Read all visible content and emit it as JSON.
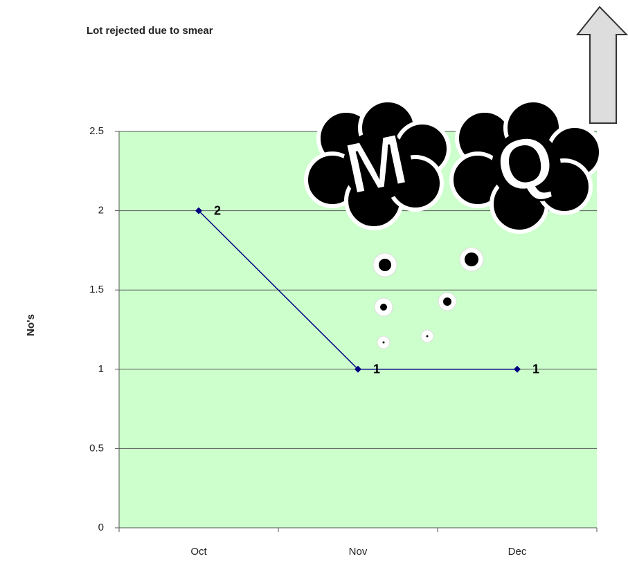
{
  "chart_data": {
    "type": "line",
    "title": "Lot rejected due to smear",
    "y_label": "No's",
    "categories": [
      "Oct",
      "Nov",
      "Dec"
    ],
    "values": [
      2,
      1,
      1
    ],
    "color": "#000080",
    "ylim": [
      0,
      2.5
    ],
    "yticks": [
      0,
      0.5,
      1,
      1.5,
      2,
      2.5
    ],
    "grid": true,
    "data_labels": true
  }
}
